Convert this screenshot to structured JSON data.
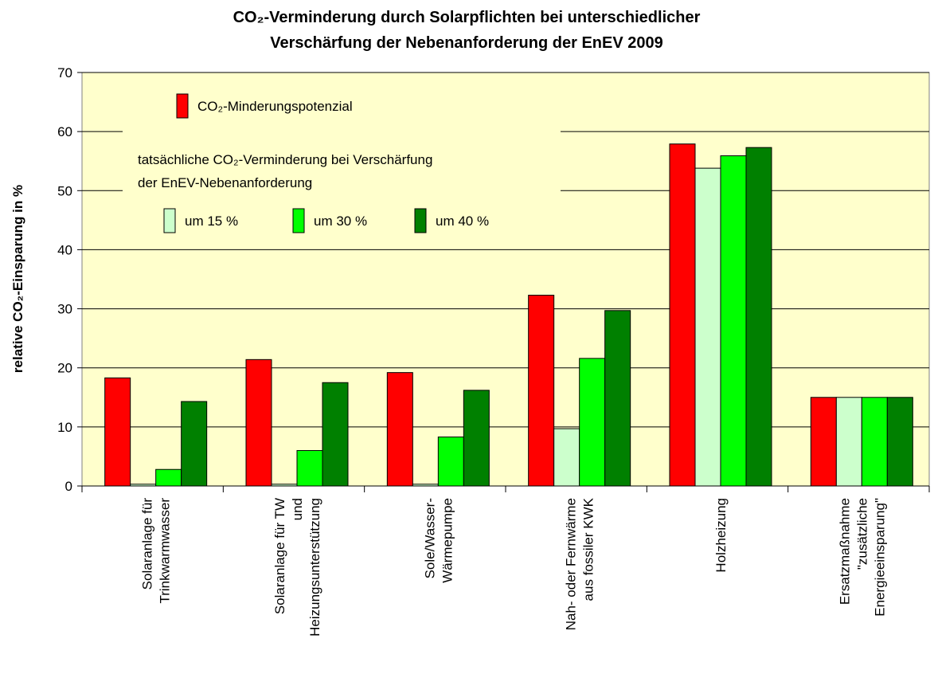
{
  "chart_data": {
    "type": "bar",
    "title": [
      "CO₂-Verminderung durch Solarpflichten bei unterschiedlicher",
      "Verschärfung der Nebenanforderung der EnEV 2009"
    ],
    "y_label": "relative CO₂-Einsparung in %",
    "categories": [
      [
        "Solaranlage für",
        "Trinkwarmwasser"
      ],
      [
        "Solaranlage für TW",
        "und",
        "Heizungsunterstützung"
      ],
      [
        "Sole/Wasser-",
        "Wärmepumpe"
      ],
      [
        "Nah- oder Fernwärme",
        "aus fossiler KWK"
      ],
      [
        "Holzheizung"
      ],
      [
        "Ersatzmaßnahme",
        "\"zusätzliche",
        "Energieeinsparung\""
      ]
    ],
    "legend_title": [
      "tatsächliche CO₂-Verminderung bei Verschärfung",
      "der EnEV-Nebenanforderung"
    ],
    "series": [
      {
        "name": "CO₂-Minderungspotenzial",
        "color": "#ff0000",
        "values": [
          18.3,
          21.4,
          19.2,
          32.3,
          57.9,
          15
        ]
      },
      {
        "name": "um 15 %",
        "color": "#ccffcc",
        "values": [
          0.3,
          0.3,
          0.3,
          9.7,
          53.8,
          15
        ]
      },
      {
        "name": "um 30 %",
        "color": "#00ff00",
        "values": [
          2.8,
          6.0,
          8.3,
          21.6,
          55.9,
          15
        ]
      },
      {
        "name": "um 40 %",
        "color": "#008000",
        "values": [
          14.3,
          17.5,
          16.2,
          29.7,
          57.3,
          15
        ]
      }
    ],
    "ylim": [
      0,
      70
    ],
    "yticks": [
      0,
      10,
      20,
      30,
      40,
      50,
      60,
      70
    ],
    "grid": true
  }
}
